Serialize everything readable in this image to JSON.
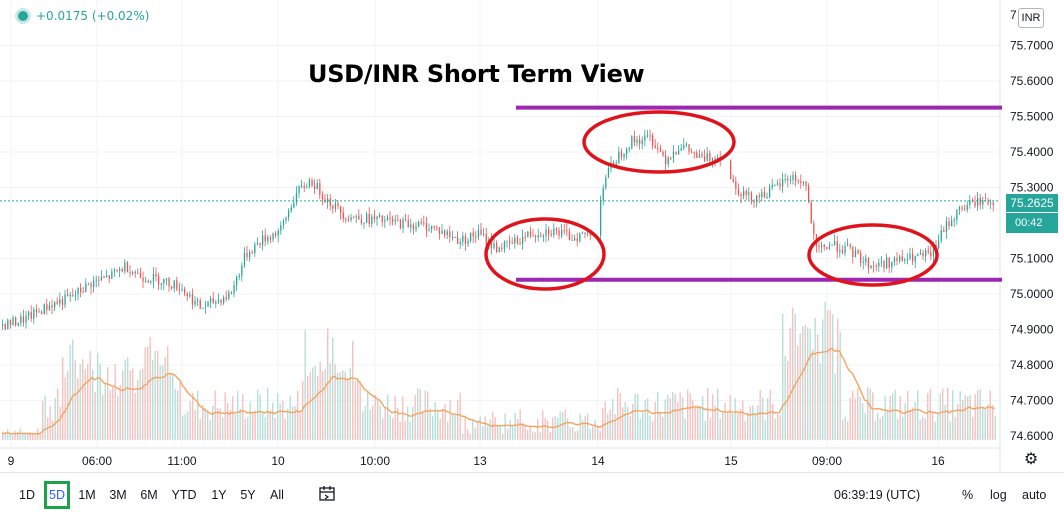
{
  "legend": {
    "change": "+0.0175 (+0.02%)"
  },
  "chart_data": {
    "type": "candlestick",
    "title": "USD/INR Short Term View",
    "currency": "INR",
    "last_price": "75.2625",
    "countdown": "00:42",
    "y_range": [
      74.56,
      76.0
    ],
    "y_ticks": [
      "75.7000",
      "75.6000",
      "75.5000",
      "75.4000",
      "75.3000",
      "75.1000",
      "75.0000",
      "74.9000",
      "74.8000",
      "74.7000",
      "74.6000"
    ],
    "y_top_partial": "7",
    "x_ticks": [
      "9",
      "06:00",
      "11:00",
      "10",
      "10:00",
      "13",
      "14",
      "15",
      "09:00",
      "16"
    ],
    "price_path": [
      [
        0,
        74.91
      ],
      [
        25,
        74.93
      ],
      [
        50,
        74.97
      ],
      [
        70,
        74.99
      ],
      [
        90,
        75.03
      ],
      [
        110,
        75.05
      ],
      [
        125,
        75.08
      ],
      [
        140,
        75.05
      ],
      [
        160,
        75.04
      ],
      [
        180,
        75.02
      ],
      [
        200,
        74.96
      ],
      [
        215,
        74.98
      ],
      [
        230,
        75.0
      ],
      [
        245,
        75.11
      ],
      [
        260,
        75.15
      ],
      [
        280,
        75.18
      ],
      [
        295,
        75.28
      ],
      [
        310,
        75.32
      ],
      [
        325,
        75.27
      ],
      [
        345,
        75.22
      ],
      [
        370,
        75.21
      ],
      [
        400,
        75.2
      ],
      [
        430,
        75.19
      ],
      [
        460,
        75.15
      ],
      [
        478,
        75.17
      ],
      [
        495,
        75.13
      ],
      [
        510,
        75.14
      ],
      [
        530,
        75.17
      ],
      [
        550,
        75.18
      ],
      [
        570,
        75.16
      ],
      [
        590,
        75.17
      ],
      [
        605,
        75.33
      ],
      [
        615,
        75.38
      ],
      [
        630,
        75.43
      ],
      [
        650,
        75.44
      ],
      [
        665,
        75.38
      ],
      [
        680,
        75.42
      ],
      [
        700,
        75.38
      ],
      [
        720,
        75.39
      ],
      [
        735,
        75.3
      ],
      [
        750,
        75.27
      ],
      [
        770,
        75.29
      ],
      [
        790,
        75.33
      ],
      [
        805,
        75.31
      ],
      [
        815,
        75.12
      ],
      [
        830,
        75.14
      ],
      [
        850,
        75.12
      ],
      [
        870,
        75.08
      ],
      [
        890,
        75.09
      ],
      [
        910,
        75.1
      ],
      [
        930,
        75.11
      ],
      [
        945,
        75.19
      ],
      [
        960,
        75.24
      ],
      [
        975,
        75.26
      ],
      [
        995,
        75.26
      ]
    ],
    "annotations": {
      "resistance_level": 75.525,
      "support_level": 75.04,
      "line_color": "#9c27b0",
      "ellipse_color": "#e0131b"
    },
    "colors": {
      "up": "#26a69a",
      "down": "#ef5350",
      "ma": "#f4a460"
    }
  },
  "toolbar": {
    "timeframes": [
      "1D",
      "5D",
      "1M",
      "3M",
      "6M",
      "YTD",
      "1Y",
      "5Y",
      "All"
    ],
    "active": "5D",
    "clock": "06:39:19 (UTC)",
    "percent": "%",
    "log": "log",
    "auto": "auto"
  }
}
